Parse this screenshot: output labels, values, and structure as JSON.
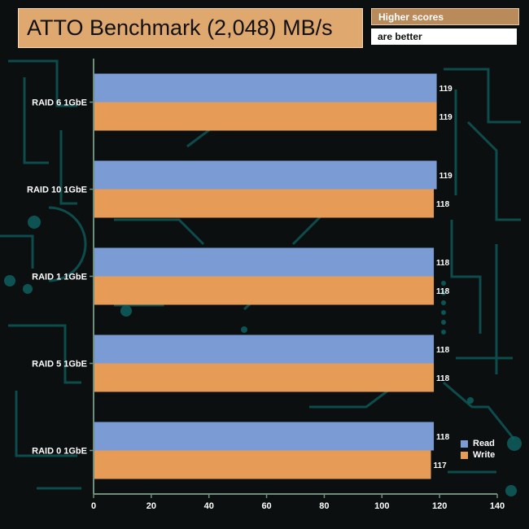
{
  "header": {
    "title": "ATTO Benchmark (2,048) MB/s",
    "note_line1": "Higher scores",
    "note_line2": "are better"
  },
  "colors": {
    "read": "#7b9bd5",
    "write": "#e69c57",
    "axis": "#6e8e79",
    "label": "#ffffff",
    "circuit": "#0f5f5f"
  },
  "chart_data": {
    "type": "bar",
    "orientation": "horizontal",
    "title": "ATTO Benchmark (2,048) MB/s",
    "categories": [
      "RAID 6 1GbE",
      "RAID 10 1GbE",
      "RAID 1 1GbE",
      "RAID 5 1GbE",
      "RAID 0 1GbE"
    ],
    "series": [
      {
        "name": "Read",
        "values": [
          119,
          119,
          118,
          118,
          118
        ]
      },
      {
        "name": "Write",
        "values": [
          119,
          118,
          118,
          118,
          117
        ]
      }
    ],
    "xlim": [
      0,
      140
    ],
    "xticks": [
      0,
      20,
      40,
      60,
      80,
      100,
      120,
      140
    ],
    "xlabel": "",
    "ylabel": "",
    "legend": "bottom-right",
    "grid": false
  }
}
